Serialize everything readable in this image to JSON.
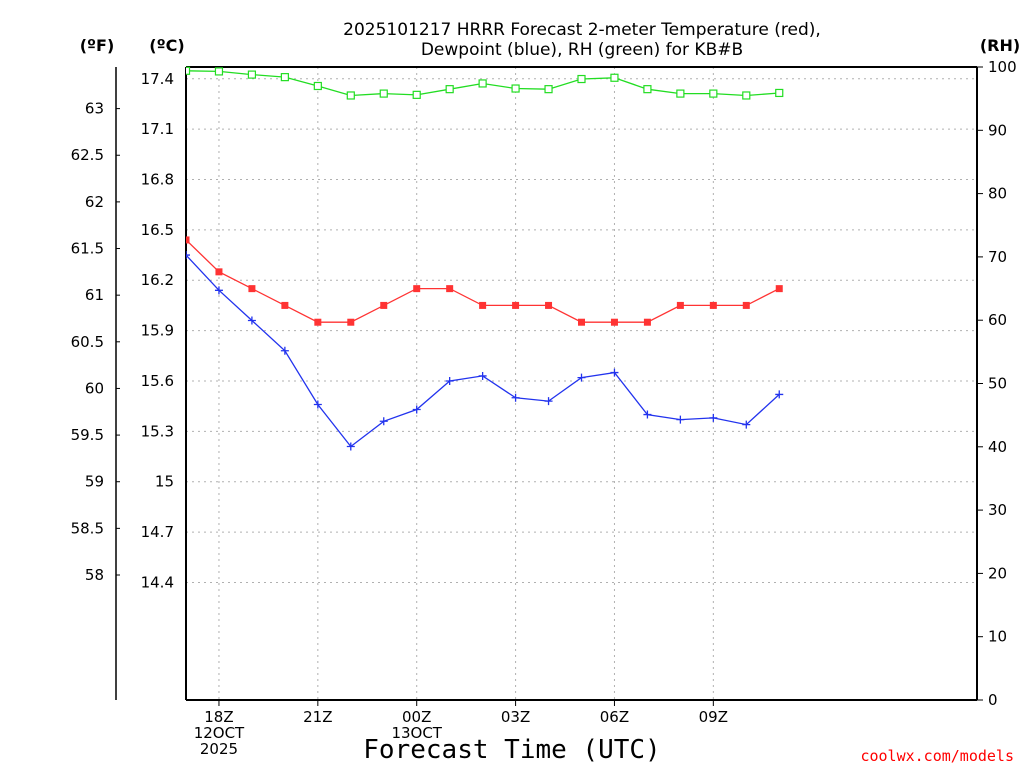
{
  "chart_data": {
    "type": "line",
    "title_lines": [
      "2025101217 HRRR Forecast 2-meter Temperature (red),",
      "Dewpoint (blue), RH (green) for KB#B"
    ],
    "xlabel": "Forecast Time (UTC)",
    "credit": "coolwx.com/models",
    "unit_labels": {
      "fahrenheit": "(ºF)",
      "celsius": "(ºC)",
      "rh": "(RH)"
    },
    "x_range": [
      17,
      41
    ],
    "x_ticks": [
      {
        "x": 18,
        "lines": [
          "18Z",
          "12OCT",
          "2025"
        ]
      },
      {
        "x": 21,
        "lines": [
          "21Z"
        ]
      },
      {
        "x": 24,
        "lines": [
          "00Z",
          "13OCT"
        ]
      },
      {
        "x": 27,
        "lines": [
          "03Z"
        ]
      },
      {
        "x": 30,
        "lines": [
          "06Z"
        ]
      },
      {
        "x": 33,
        "lines": [
          "09Z"
        ]
      }
    ],
    "celsius_axis": {
      "range": [
        13.7,
        17.47
      ],
      "ticks": [
        "14.4",
        "14.7",
        "15",
        "15.3",
        "15.6",
        "15.9",
        "16.2",
        "16.5",
        "16.8",
        "17.1",
        "17.4"
      ]
    },
    "fahrenheit_ticks": [
      "58",
      "58.5",
      "59",
      "59.5",
      "60",
      "60.5",
      "61",
      "61.5",
      "62",
      "62.5",
      "63"
    ],
    "rh_axis": {
      "range": [
        0,
        100
      ],
      "ticks": [
        "0",
        "10",
        "20",
        "30",
        "40",
        "50",
        "60",
        "70",
        "80",
        "90",
        "100"
      ]
    },
    "series": [
      {
        "name": "Temperature",
        "axis": "celsius",
        "color": "#ff3333",
        "marker": "filled-square",
        "x": [
          17,
          18,
          19,
          20,
          21,
          22,
          23,
          24,
          25,
          26,
          27,
          28,
          29,
          30,
          31,
          32,
          33,
          34,
          35
        ],
        "values": [
          16.44,
          16.25,
          16.15,
          16.05,
          15.95,
          15.95,
          16.05,
          16.15,
          16.15,
          16.05,
          16.05,
          16.05,
          15.95,
          15.95,
          15.95,
          16.05,
          16.05,
          16.05,
          16.15
        ]
      },
      {
        "name": "Dewpoint",
        "axis": "celsius",
        "color": "#2233ee",
        "marker": "plus",
        "x": [
          17,
          18,
          19,
          20,
          21,
          22,
          23,
          24,
          25,
          26,
          27,
          28,
          29,
          30,
          31,
          32,
          33,
          34,
          35
        ],
        "values": [
          16.35,
          16.14,
          15.96,
          15.78,
          15.46,
          15.21,
          15.36,
          15.43,
          15.6,
          15.63,
          15.5,
          15.48,
          15.62,
          15.65,
          15.4,
          15.37,
          15.38,
          15.34,
          15.52
        ]
      },
      {
        "name": "RH",
        "axis": "rh",
        "color": "#22dd22",
        "marker": "open-square",
        "x": [
          17,
          18,
          19,
          20,
          21,
          22,
          23,
          24,
          25,
          26,
          27,
          28,
          29,
          30,
          31,
          32,
          33,
          34,
          35
        ],
        "values": [
          99.4,
          99.3,
          98.8,
          98.4,
          97.0,
          95.5,
          95.8,
          95.6,
          96.5,
          97.4,
          96.6,
          96.5,
          98.1,
          98.3,
          96.5,
          95.8,
          95.8,
          95.5,
          95.9
        ]
      }
    ]
  }
}
